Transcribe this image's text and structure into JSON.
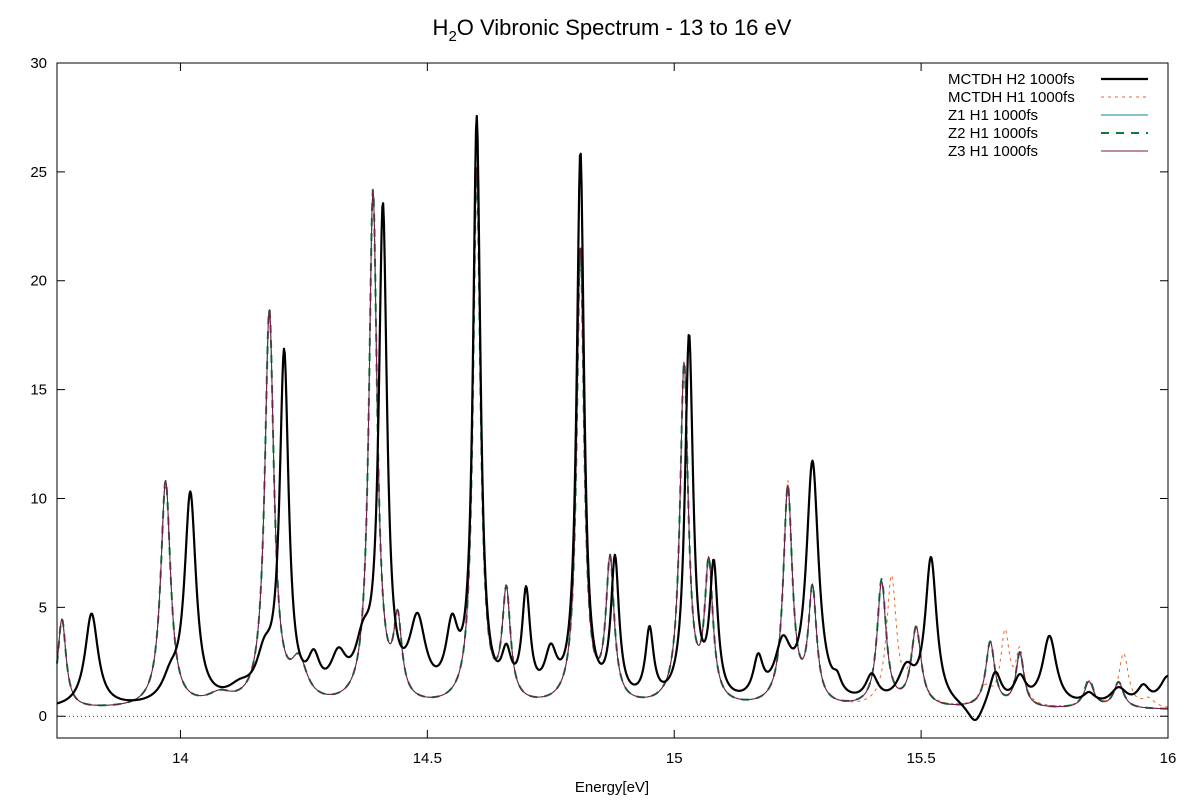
{
  "chart_data": {
    "type": "line",
    "title_main": "H",
    "title_sub": "2",
    "title_rest": "O Vibronic Spectrum - 13 to 16 eV",
    "xlabel": "Energy[eV]",
    "ylabel": "",
    "xlim": [
      13.75,
      16.0
    ],
    "ylim": [
      -1,
      30
    ],
    "x_ticks": [
      14,
      14.5,
      15,
      15.5,
      16
    ],
    "x_tick_labels": [
      "14",
      "14.5",
      "15",
      "15.5",
      "16"
    ],
    "y_ticks": [
      0,
      5,
      10,
      15,
      20,
      25,
      30
    ],
    "y_tick_labels": [
      "0",
      "5",
      "10",
      "15",
      "20",
      "25",
      "30"
    ],
    "zero_line": true,
    "legend_position": "top-right",
    "series": [
      {
        "name": "MCTDH H2 1000fs",
        "color": "#000000",
        "style": "solid-thick",
        "peaks": [
          [
            13.82,
            4.3,
            0.016
          ],
          [
            13.98,
            1.0,
            0.02
          ],
          [
            14.02,
            9.6,
            0.014
          ],
          [
            14.12,
            0.6,
            0.03
          ],
          [
            14.17,
            1.8,
            0.02
          ],
          [
            14.21,
            15.8,
            0.011
          ],
          [
            14.27,
            1.6,
            0.015
          ],
          [
            14.32,
            1.8,
            0.02
          ],
          [
            14.37,
            2.2,
            0.02
          ],
          [
            14.41,
            22.3,
            0.01
          ],
          [
            14.48,
            3.5,
            0.02
          ],
          [
            14.55,
            3.0,
            0.015
          ],
          [
            14.6,
            26.6,
            0.009
          ],
          [
            14.66,
            1.8,
            0.012
          ],
          [
            14.7,
            4.8,
            0.01
          ],
          [
            14.75,
            2.0,
            0.015
          ],
          [
            14.81,
            25.2,
            0.009
          ],
          [
            14.88,
            6.4,
            0.01
          ],
          [
            14.95,
            3.2,
            0.01
          ],
          [
            15.03,
            16.8,
            0.01
          ],
          [
            15.08,
            6.0,
            0.01
          ],
          [
            15.17,
            1.8,
            0.012
          ],
          [
            15.22,
            2.5,
            0.02
          ],
          [
            15.28,
            11.0,
            0.015
          ],
          [
            15.33,
            0.6,
            0.01
          ],
          [
            15.4,
            1.2,
            0.015
          ],
          [
            15.47,
            1.5,
            0.02
          ],
          [
            15.52,
            6.7,
            0.014
          ],
          [
            15.65,
            1.6,
            0.015
          ],
          [
            15.7,
            1.2,
            0.015
          ],
          [
            15.76,
            3.2,
            0.017
          ],
          [
            15.84,
            0.5,
            0.015
          ],
          [
            15.9,
            0.8,
            0.02
          ],
          [
            15.95,
            0.8,
            0.015
          ],
          [
            16.0,
            1.4,
            0.02
          ]
        ],
        "baseline": 0.3,
        "dips": [
          [
            15.61,
            -1.0,
            0.02
          ]
        ]
      },
      {
        "name": "MCTDH H1 1000fs",
        "color": "#e8652a",
        "style": "dotted",
        "peaks": [
          [
            13.76,
            4.1,
            0.01
          ],
          [
            13.97,
            10.4,
            0.012
          ],
          [
            14.08,
            0.5,
            0.03
          ],
          [
            14.18,
            18.1,
            0.011
          ],
          [
            14.24,
            1.8,
            0.02
          ],
          [
            14.39,
            23.6,
            0.01
          ],
          [
            14.44,
            3.5,
            0.01
          ],
          [
            14.6,
            24.6,
            0.009
          ],
          [
            14.66,
            5.0,
            0.01
          ],
          [
            14.81,
            21.0,
            0.009
          ],
          [
            14.87,
            6.5,
            0.01
          ],
          [
            15.02,
            15.6,
            0.01
          ],
          [
            15.07,
            6.3,
            0.01
          ],
          [
            15.23,
            10.2,
            0.011
          ],
          [
            15.28,
            5.2,
            0.01
          ],
          [
            15.44,
            5.9,
            0.012
          ],
          [
            15.49,
            3.5,
            0.012
          ],
          [
            15.63,
            0.8,
            0.015
          ],
          [
            15.67,
            3.3,
            0.011
          ],
          [
            15.7,
            2.4,
            0.01
          ],
          [
            15.84,
            1.2,
            0.012
          ],
          [
            15.91,
            2.5,
            0.012
          ],
          [
            15.96,
            0.4,
            0.015
          ]
        ],
        "baseline": 0.3,
        "dips": []
      },
      {
        "name": "Z1 H1 1000fs",
        "color": "#0a8a9a",
        "style": "solid-thin",
        "peaks": [
          [
            13.76,
            4.1,
            0.01
          ],
          [
            13.97,
            10.4,
            0.012
          ],
          [
            14.08,
            0.5,
            0.03
          ],
          [
            14.18,
            18.1,
            0.011
          ],
          [
            14.24,
            1.8,
            0.02
          ],
          [
            14.39,
            23.6,
            0.01
          ],
          [
            14.44,
            3.5,
            0.01
          ],
          [
            14.6,
            24.6,
            0.009
          ],
          [
            14.66,
            5.0,
            0.01
          ],
          [
            14.81,
            21.0,
            0.009
          ],
          [
            14.87,
            6.5,
            0.01
          ],
          [
            15.02,
            15.6,
            0.01
          ],
          [
            15.07,
            6.3,
            0.01
          ],
          [
            15.23,
            10.0,
            0.011
          ],
          [
            15.28,
            5.2,
            0.01
          ],
          [
            15.42,
            5.7,
            0.011
          ],
          [
            15.49,
            3.6,
            0.012
          ],
          [
            15.64,
            3.0,
            0.011
          ],
          [
            15.7,
            2.4,
            0.01
          ],
          [
            15.84,
            1.2,
            0.012
          ],
          [
            15.9,
            1.2,
            0.012
          ]
        ],
        "baseline": 0.3,
        "dips": []
      },
      {
        "name": "Z2 H1 1000fs",
        "color": "#0d7a3c",
        "style": "dashed",
        "peaks": [
          [
            13.76,
            4.1,
            0.01
          ],
          [
            13.97,
            10.4,
            0.012
          ],
          [
            14.08,
            0.5,
            0.03
          ],
          [
            14.18,
            18.1,
            0.011
          ],
          [
            14.24,
            1.8,
            0.02
          ],
          [
            14.39,
            23.6,
            0.01
          ],
          [
            14.44,
            3.5,
            0.01
          ],
          [
            14.6,
            24.6,
            0.009
          ],
          [
            14.66,
            5.0,
            0.01
          ],
          [
            14.81,
            21.0,
            0.009
          ],
          [
            14.87,
            6.5,
            0.01
          ],
          [
            15.02,
            15.6,
            0.01
          ],
          [
            15.07,
            6.3,
            0.01
          ],
          [
            15.23,
            10.0,
            0.011
          ],
          [
            15.28,
            5.2,
            0.01
          ],
          [
            15.42,
            5.8,
            0.011
          ],
          [
            15.49,
            3.6,
            0.012
          ],
          [
            15.64,
            3.0,
            0.011
          ],
          [
            15.7,
            2.5,
            0.01
          ],
          [
            15.84,
            1.3,
            0.012
          ],
          [
            15.9,
            1.2,
            0.012
          ]
        ],
        "baseline": 0.3,
        "dips": []
      },
      {
        "name": "Z3 H1 1000fs",
        "color": "#7a1a4a",
        "style": "solid-thin",
        "peaks": [
          [
            13.76,
            4.1,
            0.01
          ],
          [
            13.97,
            10.4,
            0.012
          ],
          [
            14.08,
            0.5,
            0.03
          ],
          [
            14.18,
            18.1,
            0.011
          ],
          [
            14.24,
            1.8,
            0.02
          ],
          [
            14.39,
            23.6,
            0.01
          ],
          [
            14.44,
            3.5,
            0.01
          ],
          [
            14.6,
            24.6,
            0.009
          ],
          [
            14.66,
            5.0,
            0.01
          ],
          [
            14.81,
            21.0,
            0.009
          ],
          [
            14.87,
            6.5,
            0.01
          ],
          [
            15.02,
            15.6,
            0.01
          ],
          [
            15.07,
            6.3,
            0.01
          ],
          [
            15.23,
            10.0,
            0.011
          ],
          [
            15.28,
            5.2,
            0.01
          ],
          [
            15.42,
            5.7,
            0.011
          ],
          [
            15.49,
            3.6,
            0.012
          ],
          [
            15.64,
            3.0,
            0.011
          ],
          [
            15.7,
            2.5,
            0.01
          ],
          [
            15.84,
            1.2,
            0.012
          ],
          [
            15.9,
            1.2,
            0.012
          ]
        ],
        "baseline": 0.3,
        "dips": []
      }
    ]
  }
}
